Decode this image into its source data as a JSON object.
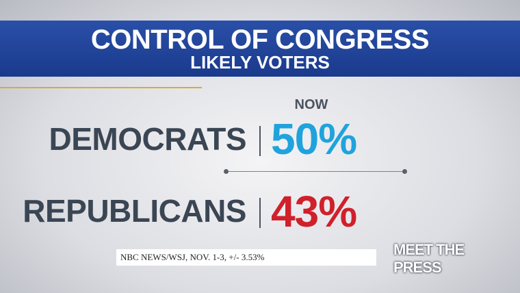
{
  "header": {
    "title": "CONTROL OF CONGRESS",
    "subtitle": "LIKELY VOTERS"
  },
  "column_label": "NOW",
  "rows": [
    {
      "label": "DEMOCRATS",
      "value": "50%",
      "color": "#1fa3dd"
    },
    {
      "label": "REPUBLICANS",
      "value": "43%",
      "color": "#d0202a"
    }
  ],
  "source": "NBC NEWS/WSJ, NOV. 1-3, +/- 3.53%",
  "logo": "MEET THE PRESS"
}
